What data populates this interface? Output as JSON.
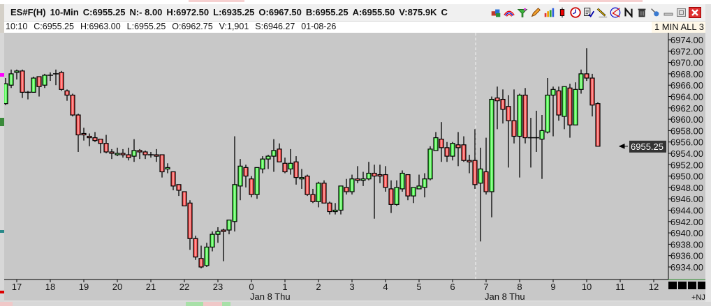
{
  "header": {
    "fields": [
      "ES#F(H)",
      "10-Min",
      "C:6955.25",
      "N:- 8.00",
      "H:6972.50",
      "L:6935.25",
      "O:6967.50",
      "B:6955.25",
      "A:6955.50",
      "V:875.9K",
      "C"
    ],
    "toolbar_icons": [
      "cubes-icon",
      "rainbow-icon",
      "funnel-icon",
      "pencil-icon",
      "bar-chart-icon",
      "candle-icon",
      "clock-icon",
      "checklist-icon",
      "draw-line-icon",
      "angle-icon",
      "n-icon",
      "trash-icon",
      "pin-icon"
    ],
    "window_buttons": [
      "minimize-icon",
      "restore-icon",
      "close-icon"
    ]
  },
  "info_row": {
    "fields": [
      "10:10",
      "C:6955.25",
      "H:6963.00",
      "L:6955.25",
      "O:6962.75",
      "V:1,901",
      "S:6946.27",
      "01-08-26"
    ],
    "mode": "1 MIN ALL 3"
  },
  "footer": {
    "tag": "+NJ"
  },
  "colors": {
    "background": "#c8c8c8",
    "up": "#00ff00",
    "down": "#ff0000",
    "price_marker": "#333333"
  },
  "chart_data": {
    "type": "candlestick",
    "interval": "10-Min",
    "ylim": [
      6933,
      6975
    ],
    "y_ticks": [
      "6974.00",
      "6972.00",
      "6970.00",
      "6968.00",
      "6966.00",
      "6964.00",
      "6962.00",
      "6960.00",
      "6958.00",
      "6956.00",
      "6954.00",
      "6952.00",
      "6950.00",
      "6948.00",
      "6946.00",
      "6944.00",
      "6942.00",
      "6940.00",
      "6938.00",
      "6936.00",
      "6934.00"
    ],
    "x_ticks": [
      "17",
      "18",
      "19",
      "20",
      "21",
      "22",
      "23",
      "0",
      "1",
      "2",
      "3",
      "4",
      "5",
      "6",
      "7",
      "8",
      "9",
      "10",
      "11",
      "12"
    ],
    "date_labels": [
      {
        "at": "0",
        "text": "Jan 8 Thu"
      },
      {
        "at": "7",
        "text": "Jan 8 Thu"
      }
    ],
    "current_price": "6955.25",
    "grid": false,
    "candles_ohlc": [
      [
        6962.75,
        6967.25,
        6962.5,
        6966.25
      ],
      [
        6966,
        6968.75,
        6965.5,
        6968
      ],
      [
        6968.25,
        6968.75,
        6967,
        6968.5
      ],
      [
        6968.5,
        6968.75,
        6963.75,
        6964.75
      ],
      [
        6964.75,
        6965,
        6963.5,
        6964.75
      ],
      [
        6964.75,
        6967.5,
        6964.75,
        6967.25
      ],
      [
        6967.5,
        6967.5,
        6964,
        6965.75
      ],
      [
        6966,
        6968,
        6965.5,
        6967.75
      ],
      [
        6967.75,
        6968.25,
        6966.75,
        6967.75
      ],
      [
        6968,
        6968.75,
        6966,
        6968
      ],
      [
        6968.25,
        6968.5,
        6965,
        6965.25
      ],
      [
        6965,
        6965.25,
        6963.25,
        6964.25
      ],
      [
        6964.25,
        6964.5,
        6960.5,
        6960.75
      ],
      [
        6960.75,
        6961,
        6954.25,
        6957.25
      ],
      [
        6957.5,
        6958.5,
        6956.25,
        6957.25
      ],
      [
        6957,
        6957.5,
        6955.25,
        6956.75
      ],
      [
        6956.75,
        6957.75,
        6956,
        6956.25
      ],
      [
        6956.5,
        6956.5,
        6954,
        6955.75
      ],
      [
        6955.75,
        6957.25,
        6954,
        6954.25
      ],
      [
        6954.25,
        6954.75,
        6953,
        6954
      ],
      [
        6953.75,
        6955,
        6953.5,
        6954
      ],
      [
        6954,
        6954.75,
        6953.25,
        6953.75
      ],
      [
        6953.75,
        6955,
        6952.75,
        6953.25
      ],
      [
        6953.5,
        6956.5,
        6952.5,
        6954.5
      ],
      [
        6954.5,
        6954.75,
        6953,
        6954.25
      ],
      [
        6954.25,
        6954.5,
        6953,
        6953.75
      ],
      [
        6953.75,
        6954.25,
        6953.25,
        6953.75
      ],
      [
        6953.75,
        6954.75,
        6952.5,
        6953.5
      ],
      [
        6953.75,
        6953.75,
        6949.75,
        6950.75
      ],
      [
        6951.25,
        6952.25,
        6950.5,
        6951.5
      ],
      [
        6950.75,
        6950.75,
        6947.5,
        6948.25
      ],
      [
        6948.5,
        6948.5,
        6946.5,
        6947.5
      ],
      [
        6947.25,
        6947.25,
        6944.75,
        6944.75
      ],
      [
        6945.25,
        6945.75,
        6937,
        6939
      ],
      [
        6939,
        6939.5,
        6935.25,
        6935.75
      ],
      [
        6935.5,
        6937.75,
        6933.75,
        6934
      ],
      [
        6934.25,
        6938.25,
        6934,
        6937.5
      ],
      [
        6937.5,
        6940.25,
        6936.75,
        6939.75
      ],
      [
        6939.75,
        6941,
        6938.25,
        6940.25
      ],
      [
        6940.5,
        6940.75,
        6935,
        6940.25
      ],
      [
        6940.5,
        6942.25,
        6939.75,
        6942.25
      ],
      [
        6942,
        6957,
        6940.25,
        6948.5
      ],
      [
        6948.25,
        6953,
        6945.75,
        6951.75
      ],
      [
        6951.5,
        6952,
        6948,
        6950
      ],
      [
        6949.5,
        6950,
        6946.25,
        6946.75
      ],
      [
        6946.75,
        6951.5,
        6946,
        6951.5
      ],
      [
        6951.25,
        6953.5,
        6950.5,
        6953
      ],
      [
        6953,
        6953.75,
        6951.25,
        6953.5
      ],
      [
        6953.5,
        6956.5,
        6950.75,
        6954.5
      ],
      [
        6954.75,
        6955.75,
        6952.5,
        6952.5
      ],
      [
        6952.25,
        6953.25,
        6950.5,
        6950.75
      ],
      [
        6951.25,
        6954.75,
        6950.25,
        6952.25
      ],
      [
        6952.5,
        6953.5,
        6948.5,
        6949.75
      ],
      [
        6949.5,
        6951.25,
        6947.75,
        6949.75
      ],
      [
        6950,
        6950.25,
        6946.5,
        6946.75
      ],
      [
        6946.75,
        6947.75,
        6945.25,
        6945.5
      ],
      [
        6945.5,
        6949,
        6944.5,
        6948.75
      ],
      [
        6948.75,
        6949.25,
        6945.25,
        6945.25
      ],
      [
        6945.25,
        6945.5,
        6943.25,
        6943.75
      ],
      [
        6943.75,
        6945.25,
        6943.25,
        6944
      ],
      [
        6944,
        6948.25,
        6943.25,
        6948.25
      ],
      [
        6948,
        6949.5,
        6946.75,
        6947.25
      ],
      [
        6947.25,
        6950.25,
        6946.75,
        6949.5
      ],
      [
        6949.5,
        6951.75,
        6948.75,
        6949.25
      ],
      [
        6949.25,
        6950.75,
        6948.25,
        6949.5
      ],
      [
        6949.5,
        6952.5,
        6949.25,
        6950.5
      ],
      [
        6950.5,
        6952,
        6942.5,
        6950
      ],
      [
        6950.25,
        6952,
        6948.75,
        6950
      ],
      [
        6950.25,
        6951.75,
        6947.25,
        6948
      ],
      [
        6947.75,
        6949.25,
        6943.5,
        6945
      ],
      [
        6945,
        6949.25,
        6944.75,
        6948
      ],
      [
        6947.75,
        6951,
        6947.25,
        6950.5
      ],
      [
        6950.25,
        6950.25,
        6945.75,
        6946.5
      ],
      [
        6946.5,
        6948,
        6945.25,
        6948
      ],
      [
        6947.75,
        6950.25,
        6947.75,
        6948.25
      ],
      [
        6948,
        6950.5,
        6946.25,
        6949.5
      ],
      [
        6949.5,
        6955.25,
        6949.25,
        6954.75
      ],
      [
        6954.5,
        6957.75,
        6954.5,
        6956.75
      ],
      [
        6956.5,
        6959.5,
        6952.5,
        6955
      ],
      [
        6955,
        6956,
        6952.5,
        6953.5
      ],
      [
        6953.5,
        6956,
        6952.75,
        6955.75
      ],
      [
        6955.5,
        6957.75,
        6951.75,
        6955
      ],
      [
        6955.5,
        6957,
        6952.5,
        6952.75
      ],
      [
        6952.75,
        6953.75,
        6950.5,
        6952.5
      ],
      [
        6952.75,
        6958.25,
        6947.75,
        6948.5
      ],
      [
        6948.75,
        6955,
        6938.5,
        6951.25
      ],
      [
        6950.75,
        6956.75,
        6946.75,
        6947.25
      ],
      [
        6947.25,
        6964,
        6942.75,
        6963.5
      ],
      [
        6963.75,
        6965.75,
        6958.25,
        6963.25
      ],
      [
        6963.5,
        6965.25,
        6959.25,
        6961.75
      ],
      [
        6962.25,
        6964.25,
        6951.5,
        6959.75
      ],
      [
        6959.75,
        6965.25,
        6955.75,
        6957
      ],
      [
        6957,
        6964.5,
        6949.75,
        6964.25
      ],
      [
        6964.25,
        6965.5,
        6955.75,
        6956.75
      ],
      [
        6956.75,
        6960.25,
        6951.5,
        6956.75
      ],
      [
        6956.75,
        6961.5,
        6954.25,
        6956.75
      ],
      [
        6956.5,
        6960.75,
        6949.5,
        6958
      ],
      [
        6957.75,
        6967.25,
        6957.5,
        6964.25
      ],
      [
        6964.25,
        6965.75,
        6957,
        6965.25
      ],
      [
        6965,
        6965.75,
        6959.75,
        6960.75
      ],
      [
        6960.5,
        6965.75,
        6958.25,
        6965.75
      ],
      [
        6965.5,
        6966.25,
        6956.75,
        6959
      ],
      [
        6959,
        6966.5,
        6959,
        6965.25
      ],
      [
        6965.25,
        6968.75,
        6964.5,
        6968
      ],
      [
        6968,
        6972.5,
        6966.75,
        6967.25
      ],
      [
        6967.25,
        6968,
        6960.5,
        6962.5
      ],
      [
        6962.75,
        6963,
        6955.25,
        6955.25
      ]
    ]
  }
}
